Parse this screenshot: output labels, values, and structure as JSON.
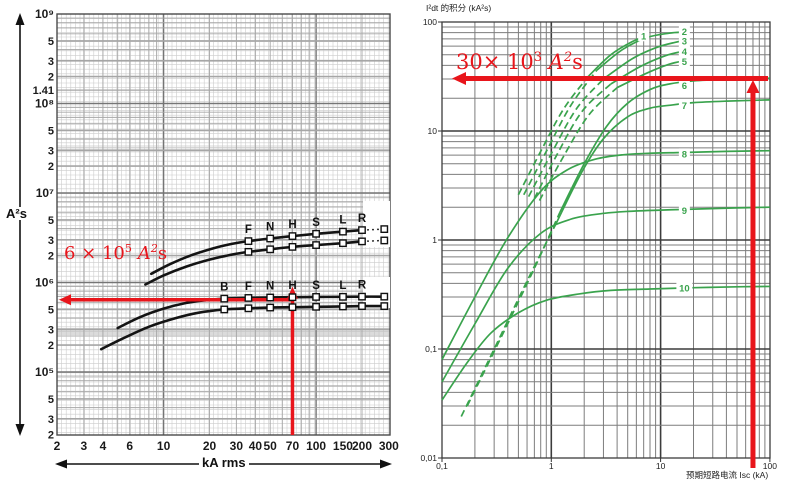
{
  "ui": {
    "left_y_axis_label": "A²s",
    "left_x_axis_label": "kA rms",
    "right_title": "I²dt 的积分 (kA²s)",
    "right_x_axis_label": "预期短路电流 Isc (kA)",
    "left_annotation": {
      "prefix": "6 × 10",
      "exp": "5",
      "unit": " A",
      "unit_exp": "2",
      "unit_suffix": "s"
    },
    "right_annotation": {
      "prefix": "30× 10",
      "exp": "3",
      "unit": " A",
      "unit_exp": "2",
      "unit_suffix": "s"
    }
  },
  "colors": {
    "red": "#e8151b",
    "green": "#3aa34d",
    "curve_black": "#141414",
    "grid_fine": "#cccccc",
    "grid_minor_left": "#a6a6a6",
    "grid_major_left": "#757575",
    "grid_minor_right": "#7d7d7d",
    "grid_major_right": "#3c3c3c"
  },
  "chart_data": [
    {
      "id": "breaker-let-through-energy",
      "type": "line",
      "title": "",
      "xlabel": "kA rms",
      "ylabel": "A²s",
      "xscale": "log",
      "yscale": "log",
      "xlim": [
        2,
        300
      ],
      "ylim": [
        20000,
        1000000000
      ],
      "grid": true,
      "x_ticks": [
        2,
        3,
        4,
        6,
        10,
        20,
        30,
        40,
        50,
        70,
        100,
        150,
        200,
        300
      ],
      "y_ticks": [
        {
          "label": "10⁹",
          "value": 1000000000.0,
          "major": true
        },
        {
          "label": "5",
          "value": 500000000.0
        },
        {
          "label": "3",
          "value": 300000000.0
        },
        {
          "label": "2",
          "value": 200000000.0
        },
        {
          "label": "1.41",
          "value": 141000000.0
        },
        {
          "label": "10⁸",
          "value": 100000000.0,
          "major": true
        },
        {
          "label": "5",
          "value": 50000000.0
        },
        {
          "label": "3",
          "value": 30000000.0
        },
        {
          "label": "2",
          "value": 20000000.0
        },
        {
          "label": "10⁷",
          "value": 10000000.0,
          "major": true
        },
        {
          "label": "5",
          "value": 5000000.0
        },
        {
          "label": "3",
          "value": 3000000.0
        },
        {
          "label": "2",
          "value": 2000000.0
        },
        {
          "label": "10⁶",
          "value": 1000000.0,
          "major": true
        },
        {
          "label": "5",
          "value": 500000.0
        },
        {
          "label": "3",
          "value": 300000.0
        },
        {
          "label": "2",
          "value": 200000.0
        },
        {
          "label": "10⁵",
          "value": 100000.0,
          "major": true
        },
        {
          "label": "5",
          "value": 50000.0
        },
        {
          "label": "3",
          "value": 30000.0
        },
        {
          "label": "2",
          "value": 20000.0
        }
      ],
      "breaking_capacity_codes": [
        "B",
        "F",
        "N",
        "H",
        "S",
        "L",
        "R"
      ],
      "breaking_capacity_kA": [
        25,
        36,
        50,
        70,
        100,
        150,
        200
      ],
      "series": [
        {
          "name": "upper-band-max",
          "dash_from": 200,
          "markers": [
            36,
            50,
            70,
            100,
            150,
            200,
            280
          ],
          "labels": [
            [
              "F",
              36
            ],
            [
              "N",
              50
            ],
            [
              "H",
              70
            ],
            [
              "S",
              100
            ],
            [
              "L",
              150
            ],
            [
              "R",
              200
            ]
          ],
          "points": [
            [
              8.3,
              1250000
            ],
            [
              11,
              1600000
            ],
            [
              15,
              2000000
            ],
            [
              21,
              2400000
            ],
            [
              28,
              2700000
            ],
            [
              36,
              2900000
            ],
            [
              50,
              3100000
            ],
            [
              70,
              3300000
            ],
            [
              100,
              3500000
            ],
            [
              150,
              3700000
            ],
            [
              200,
              3850000
            ],
            [
              280,
              3950000
            ]
          ]
        },
        {
          "name": "upper-band-min",
          "dash_from": 200,
          "markers": [
            36,
            50,
            70,
            100,
            150,
            200,
            280
          ],
          "labels": [],
          "points": [
            [
              7.6,
              950000
            ],
            [
              10,
              1200000
            ],
            [
              14,
              1500000
            ],
            [
              20,
              1800000
            ],
            [
              28,
              2050000
            ],
            [
              36,
              2200000
            ],
            [
              50,
              2350000
            ],
            [
              70,
              2500000
            ],
            [
              100,
              2620000
            ],
            [
              150,
              2750000
            ],
            [
              200,
              2880000
            ],
            [
              280,
              2950000
            ]
          ]
        },
        {
          "name": "lower-band-max",
          "dash_from": null,
          "markers": [
            25,
            36,
            50,
            70,
            100,
            150,
            200,
            280
          ],
          "labels": [
            [
              "B",
              25
            ],
            [
              "F",
              36
            ],
            [
              "N",
              50
            ],
            [
              "H",
              70
            ],
            [
              "S",
              100
            ],
            [
              "L",
              150
            ],
            [
              "R",
              200
            ]
          ],
          "points": [
            [
              5,
              310000
            ],
            [
              7,
              410000
            ],
            [
              10,
              510000
            ],
            [
              14,
              590000
            ],
            [
              19,
              635000
            ],
            [
              25,
              660000
            ],
            [
              36,
              672000
            ],
            [
              50,
              680000
            ],
            [
              70,
              685000
            ],
            [
              100,
              690000
            ],
            [
              150,
              692000
            ],
            [
              200,
              695000
            ],
            [
              280,
              695000
            ]
          ]
        },
        {
          "name": "lower-band-min",
          "dash_from": null,
          "markers": [
            25,
            36,
            50,
            70,
            100,
            150,
            200,
            280
          ],
          "labels": [],
          "points": [
            [
              3.9,
              180000
            ],
            [
              5.5,
              240000
            ],
            [
              8,
              320000
            ],
            [
              12,
              400000
            ],
            [
              17,
              460000
            ],
            [
              25,
              500000
            ],
            [
              36,
              515000
            ],
            [
              50,
              525000
            ],
            [
              70,
              530000
            ],
            [
              100,
              535000
            ],
            [
              150,
              540000
            ],
            [
              200,
              545000
            ],
            [
              280,
              545000
            ]
          ]
        }
      ],
      "reading": {
        "x": 70,
        "y": 650000,
        "annotation": "6 × 10⁵ A²s"
      }
    },
    {
      "id": "i2t-integral-curves",
      "type": "line",
      "title": "I²dt 的积分 (kA²s)",
      "xlabel": "预期短路电流 Isc (kA)",
      "xscale": "log",
      "yscale": "log",
      "xlim": [
        0.1,
        100
      ],
      "ylim": [
        0.01,
        100
      ],
      "grid": true,
      "x_ticks": [
        {
          "label": "0,1",
          "value": 0.1
        },
        {
          "label": "1",
          "value": 1
        },
        {
          "label": "10",
          "value": 10
        },
        {
          "label": "100",
          "value": 100
        }
      ],
      "y_ticks": [
        {
          "label": "100",
          "value": 100
        },
        {
          "label": "10",
          "value": 10
        },
        {
          "label": "1",
          "value": 1
        },
        {
          "label": "0,1",
          "value": 0.1
        },
        {
          "label": "0,01",
          "value": 0.01
        }
      ],
      "series": [
        {
          "name": "1",
          "label_at": [
            7,
            74
          ],
          "dash_until": 3,
          "points": [
            [
              0.5,
              2.6
            ],
            [
              0.8,
              6.5
            ],
            [
              1.3,
              16
            ],
            [
              2.2,
              32
            ],
            [
              3.5,
              50
            ],
            [
              5.5,
              66
            ],
            [
              7.8,
              76
            ]
          ]
        },
        {
          "name": "2",
          "label_at": [
            16.5,
            81
          ],
          "dash_until": 3,
          "points": [
            [
              0.56,
              2.6
            ],
            [
              0.9,
              6.5
            ],
            [
              1.5,
              17
            ],
            [
              2.6,
              36
            ],
            [
              4.5,
              56
            ],
            [
              7.5,
              72
            ],
            [
              12,
              79
            ],
            [
              16.3,
              81
            ]
          ]
        },
        {
          "name": "3",
          "label_at": [
            16.5,
            66
          ],
          "dash_until": 3,
          "points": [
            [
              0.62,
              2.5
            ],
            [
              1,
              6.2
            ],
            [
              1.7,
              16
            ],
            [
              3,
              30
            ],
            [
              5.5,
              46
            ],
            [
              9,
              58
            ],
            [
              13.5,
              65
            ],
            [
              16.3,
              67
            ]
          ]
        },
        {
          "name": "4",
          "label_at": [
            16.5,
            53
          ],
          "dash_until": 3,
          "points": [
            [
              0.7,
              2.4
            ],
            [
              1.1,
              5.8
            ],
            [
              1.9,
              15
            ],
            [
              3.5,
              27
            ],
            [
              6.5,
              39
            ],
            [
              11,
              49
            ],
            [
              16.3,
              54
            ]
          ]
        },
        {
          "name": "5",
          "label_at": [
            16.5,
            43
          ],
          "dash_until": 3,
          "points": [
            [
              0.78,
              2.3
            ],
            [
              1.25,
              5.5
            ],
            [
              2.2,
              14
            ],
            [
              4,
              25
            ],
            [
              7.5,
              34
            ],
            [
              12,
              41
            ],
            [
              16.3,
              44
            ]
          ]
        },
        {
          "name": "6",
          "label_at": [
            16.5,
            26
          ],
          "dash_until": 3,
          "points": [
            [
              0.17,
              0.03
            ],
            [
              0.35,
              0.13
            ],
            [
              0.7,
              0.55
            ],
            [
              1.2,
              1.8
            ],
            [
              2,
              5
            ],
            [
              3.2,
              11
            ],
            [
              5,
              18
            ],
            [
              8,
              24
            ],
            [
              12,
              27
            ],
            [
              20,
              28.8
            ],
            [
              40,
              29.8
            ],
            [
              100,
              30.5
            ]
          ]
        },
        {
          "name": "7",
          "label_at": [
            16.5,
            17
          ],
          "dash_until": 3,
          "points": [
            [
              0.15,
              0.024
            ],
            [
              0.3,
              0.1
            ],
            [
              0.6,
              0.42
            ],
            [
              1.1,
              1.4
            ],
            [
              1.9,
              4.2
            ],
            [
              3,
              8.5
            ],
            [
              5,
              13.5
            ],
            [
              8,
              16.2
            ],
            [
              12,
              17.2
            ],
            [
              20,
              18.2
            ],
            [
              40,
              18.8
            ],
            [
              100,
              19.3
            ]
          ]
        },
        {
          "name": "8",
          "label_at": [
            16.5,
            6.1
          ],
          "dash_until": 0,
          "points": [
            [
              0.1,
              0.08
            ],
            [
              0.2,
              0.3
            ],
            [
              0.4,
              1.05
            ],
            [
              0.8,
              2.8
            ],
            [
              1.4,
              4.4
            ],
            [
              2.5,
              5.5
            ],
            [
              4.5,
              6.05
            ],
            [
              8,
              6.25
            ],
            [
              16,
              6.35
            ],
            [
              40,
              6.5
            ],
            [
              100,
              6.6
            ]
          ]
        },
        {
          "name": "9",
          "label_at": [
            16.5,
            1.85
          ],
          "dash_until": 0,
          "points": [
            [
              0.1,
              0.05
            ],
            [
              0.2,
              0.17
            ],
            [
              0.4,
              0.55
            ],
            [
              0.8,
              1.15
            ],
            [
              1.5,
              1.55
            ],
            [
              2.8,
              1.74
            ],
            [
              5,
              1.83
            ],
            [
              10,
              1.88
            ],
            [
              20,
              1.92
            ],
            [
              50,
              1.97
            ],
            [
              100,
              2
            ]
          ]
        },
        {
          "name": "10",
          "label_at": [
            16.5,
            0.36
          ],
          "dash_until": 0,
          "points": [
            [
              0.1,
              0.034
            ],
            [
              0.17,
              0.075
            ],
            [
              0.28,
              0.14
            ],
            [
              0.5,
              0.215
            ],
            [
              0.9,
              0.28
            ],
            [
              1.8,
              0.32
            ],
            [
              3.5,
              0.345
            ],
            [
              8,
              0.355
            ],
            [
              20,
              0.365
            ],
            [
              50,
              0.372
            ],
            [
              100,
              0.375
            ]
          ]
        }
      ],
      "reading": {
        "x": 70,
        "y": 30,
        "annotation": "30× 10³ A²s"
      }
    }
  ]
}
